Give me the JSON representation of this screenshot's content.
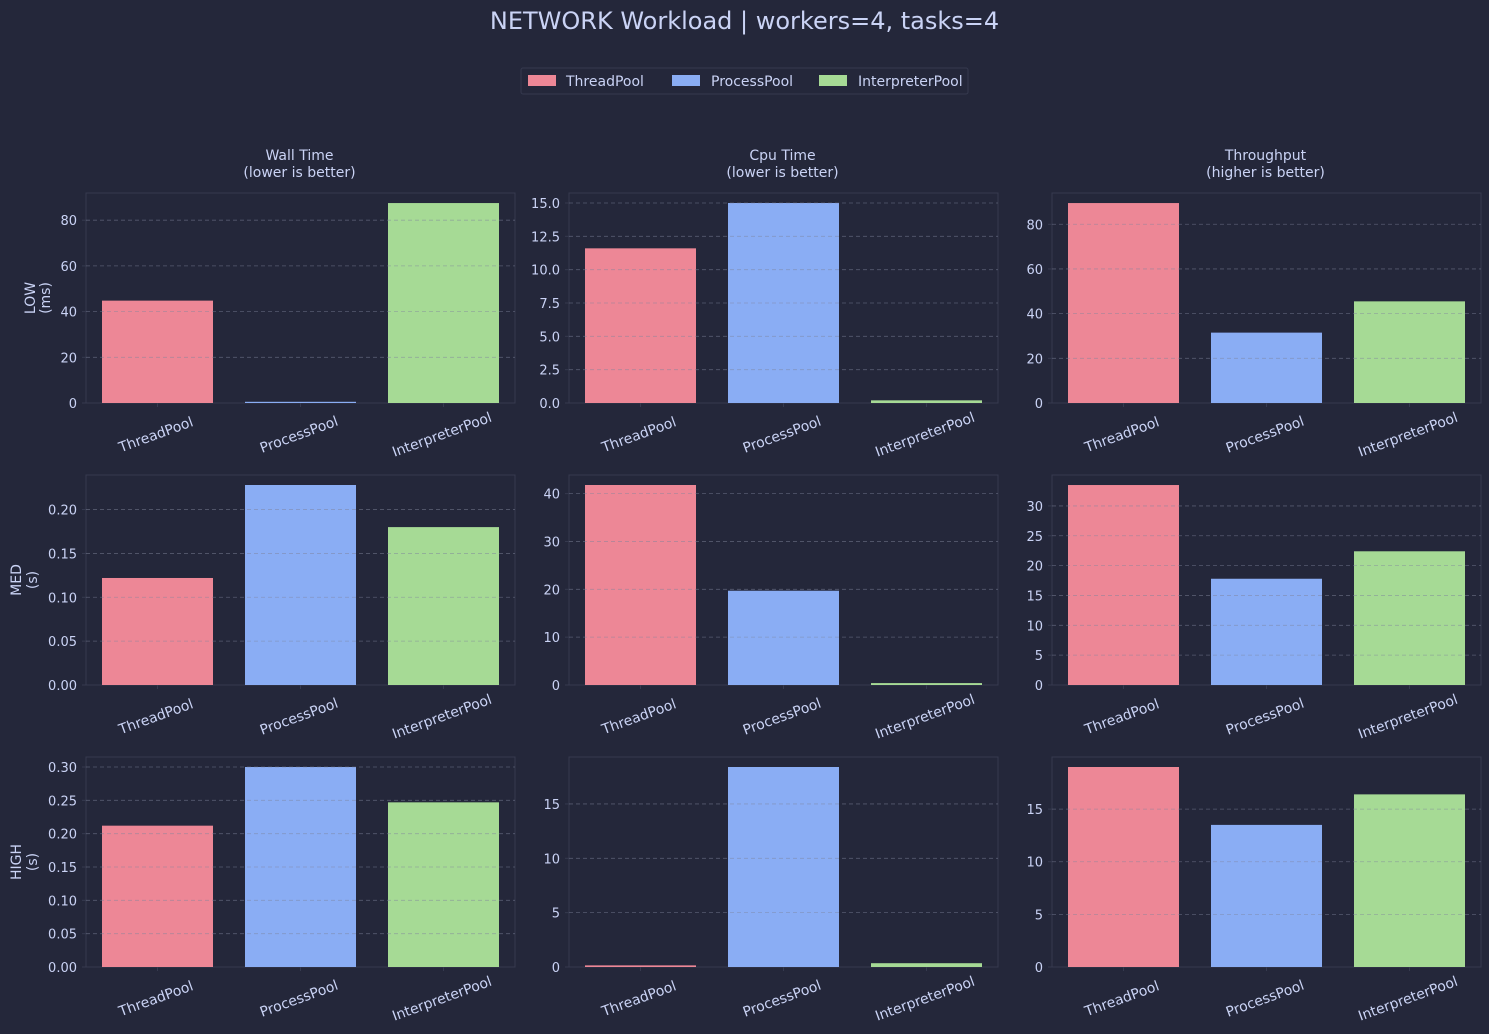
{
  "title": "NETWORK Workload | workers=4, tasks=4",
  "legend": {
    "placement": "top-center",
    "entries": [
      "ThreadPool",
      "ProcessPool",
      "InterpreterPool"
    ]
  },
  "colors": {
    "background": "#24273a",
    "panel_border": "#363a4f",
    "grid": "#7f849c",
    "text": "#cad3f5",
    "ThreadPool": "#ed8796",
    "ProcessPool": "#8aadf4",
    "InterpreterPool": "#a6da95"
  },
  "columns": [
    {
      "title": "Wall Time",
      "subtitle": "(lower is better)"
    },
    {
      "title": "Cpu Time",
      "subtitle": "(lower is better)"
    },
    {
      "title": "Throughput",
      "subtitle": "(higher is better)"
    }
  ],
  "rows": [
    {
      "label": "LOW",
      "unit": "(ms)"
    },
    {
      "label": "MED",
      "unit": "(s)"
    },
    {
      "label": "HIGH",
      "unit": "(s)"
    }
  ],
  "chart_data": [
    {
      "type": "bar",
      "row": "LOW",
      "column": "Wall Time",
      "ylabel": "LOW\n(ms)",
      "categories": [
        "ThreadPool",
        "ProcessPool",
        "InterpreterPool"
      ],
      "values": [
        44.8,
        0.5,
        87.5
      ],
      "ylim": [
        0,
        91.9
      ],
      "yticks": [
        "0",
        "20",
        "40",
        "60",
        "80"
      ],
      "ytick_values": [
        0,
        20,
        40,
        60,
        80
      ],
      "grid": true
    },
    {
      "type": "bar",
      "row": "LOW",
      "column": "Cpu Time",
      "categories": [
        "ThreadPool",
        "ProcessPool",
        "InterpreterPool"
      ],
      "values": [
        11.6,
        15.0,
        0.2
      ],
      "ylim": [
        0,
        15.75
      ],
      "yticks": [
        "0.0",
        "2.5",
        "5.0",
        "7.5",
        "10.0",
        "12.5",
        "15.0"
      ],
      "ytick_values": [
        0,
        2.5,
        5.0,
        7.5,
        10.0,
        12.5,
        15.0
      ],
      "grid": true
    },
    {
      "type": "bar",
      "row": "LOW",
      "column": "Throughput",
      "categories": [
        "ThreadPool",
        "ProcessPool",
        "InterpreterPool"
      ],
      "values": [
        89.5,
        31.5,
        45.5
      ],
      "ylim": [
        0,
        94.0
      ],
      "yticks": [
        "0",
        "20",
        "40",
        "60",
        "80"
      ],
      "ytick_values": [
        0,
        20,
        40,
        60,
        80
      ],
      "grid": true
    },
    {
      "type": "bar",
      "row": "MED",
      "column": "Wall Time",
      "ylabel": "MED\n(s)",
      "categories": [
        "ThreadPool",
        "ProcessPool",
        "InterpreterPool"
      ],
      "values": [
        0.122,
        0.228,
        0.18
      ],
      "ylim": [
        0,
        0.2394
      ],
      "yticks": [
        "0.00",
        "0.05",
        "0.10",
        "0.15",
        "0.20"
      ],
      "ytick_values": [
        0,
        0.05,
        0.1,
        0.15,
        0.2
      ],
      "grid": true
    },
    {
      "type": "bar",
      "row": "MED",
      "column": "Cpu Time",
      "categories": [
        "ThreadPool",
        "ProcessPool",
        "InterpreterPool"
      ],
      "values": [
        41.8,
        19.7,
        0.4
      ],
      "ylim": [
        0,
        43.89
      ],
      "yticks": [
        "0",
        "10",
        "20",
        "30",
        "40"
      ],
      "ytick_values": [
        0,
        10,
        20,
        30,
        40
      ],
      "grid": true
    },
    {
      "type": "bar",
      "row": "MED",
      "column": "Throughput",
      "categories": [
        "ThreadPool",
        "ProcessPool",
        "InterpreterPool"
      ],
      "values": [
        33.5,
        17.8,
        22.4
      ],
      "ylim": [
        0,
        35.18
      ],
      "yticks": [
        "0",
        "5",
        "10",
        "15",
        "20",
        "25",
        "30"
      ],
      "ytick_values": [
        0,
        5,
        10,
        15,
        20,
        25,
        30
      ],
      "grid": true
    },
    {
      "type": "bar",
      "row": "HIGH",
      "column": "Wall Time",
      "ylabel": "HIGH\n(s)",
      "categories": [
        "ThreadPool",
        "ProcessPool",
        "InterpreterPool"
      ],
      "values": [
        0.212,
        0.3,
        0.247
      ],
      "ylim": [
        0,
        0.315
      ],
      "yticks": [
        "0.00",
        "0.05",
        "0.10",
        "0.15",
        "0.20",
        "0.25",
        "0.30"
      ],
      "ytick_values": [
        0,
        0.05,
        0.1,
        0.15,
        0.2,
        0.25,
        0.3
      ],
      "grid": true
    },
    {
      "type": "bar",
      "row": "HIGH",
      "column": "Cpu Time",
      "categories": [
        "ThreadPool",
        "ProcessPool",
        "InterpreterPool"
      ],
      "values": [
        0.15,
        18.4,
        0.35
      ],
      "ylim": [
        0,
        19.32
      ],
      "yticks": [
        "0",
        "5",
        "10",
        "15"
      ],
      "ytick_values": [
        0,
        5,
        10,
        15
      ],
      "grid": true
    },
    {
      "type": "bar",
      "row": "HIGH",
      "column": "Throughput",
      "categories": [
        "ThreadPool",
        "ProcessPool",
        "InterpreterPool"
      ],
      "values": [
        19.0,
        13.5,
        16.4
      ],
      "ylim": [
        0,
        19.95
      ],
      "yticks": [
        "0",
        "5",
        "10",
        "15"
      ],
      "ytick_values": [
        0,
        5,
        10,
        15
      ],
      "grid": true
    }
  ]
}
